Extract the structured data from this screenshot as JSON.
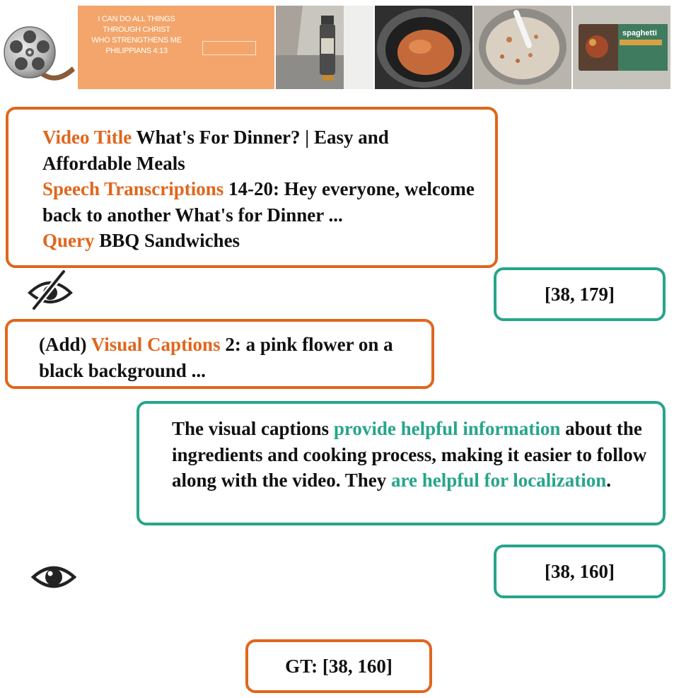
{
  "frames": {
    "verse_lines": [
      "I CAN DO ALL THINGS",
      "THROUGH CHRIST",
      "WHO STRENGTHENS ME",
      "PHILIPPIANS 4:13"
    ],
    "product_label": "spaghetti"
  },
  "query_box": {
    "title_label": "Video Title",
    "title_value": "What's For Dinner? | Easy and Affordable Meals",
    "speech_label": "Speech Transcriptions",
    "speech_value": "14-20: Hey everyone, welcome back to another What's for Dinner ...",
    "query_label": "Query",
    "query_value": "BBQ Sandwiches"
  },
  "blind_prediction": "[38, 179]",
  "caption_box": {
    "prefix": "(Add)",
    "label": "Visual Captions",
    "value": "2: a pink flower on a black background ..."
  },
  "reasoning_box": {
    "part1": "The visual captions",
    "highlight1": "provide helpful information",
    "part2": "about the ingredients and cooking process, making it easier to follow along with the video. They",
    "highlight2": "are helpful for localization",
    "part3": "."
  },
  "visual_prediction": "[38, 160]",
  "ground_truth": "GT: [38, 160]",
  "colors": {
    "orange": "#e0661c",
    "teal": "#27a58a",
    "frame_title_bg": "#f3a56b"
  },
  "icons": [
    "film-reel-icon",
    "eye-closed-icon",
    "eye-open-icon"
  ]
}
